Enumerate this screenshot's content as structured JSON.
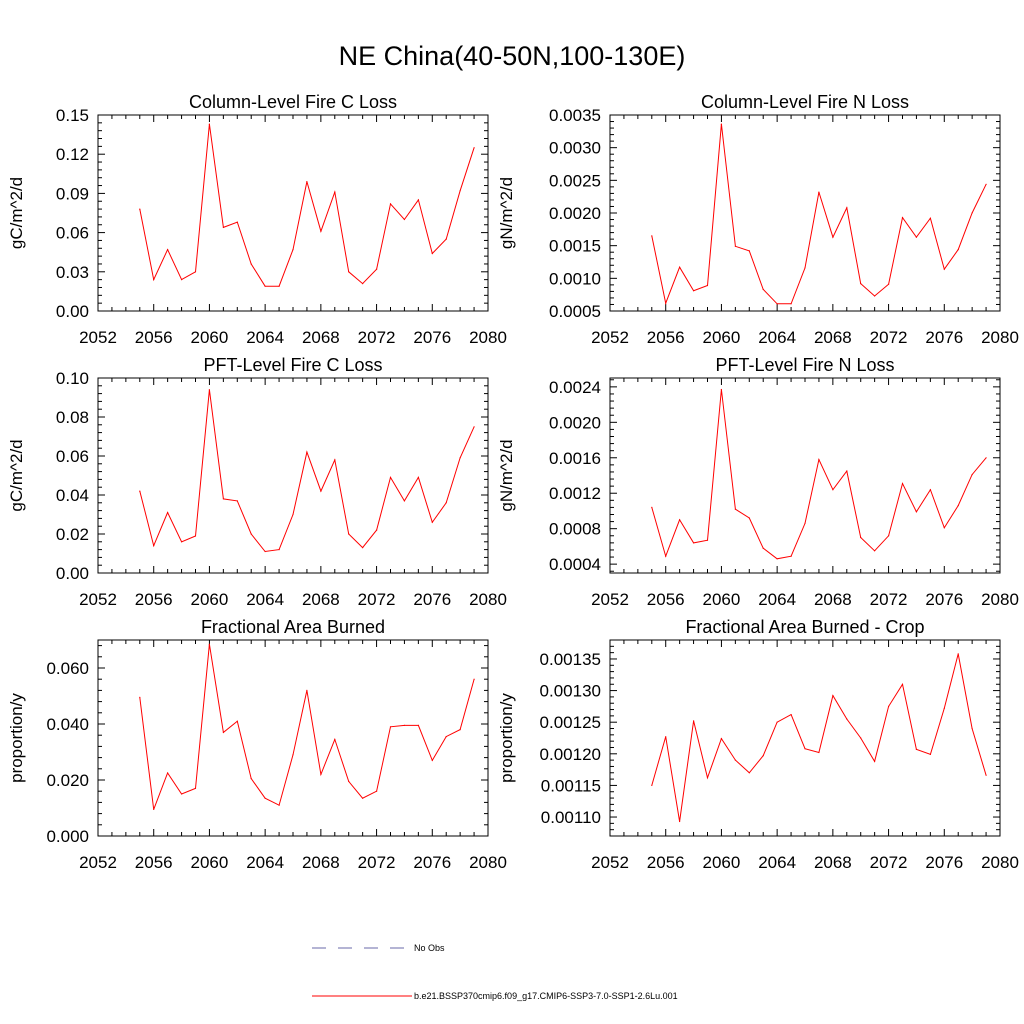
{
  "title": "NE China(40-50N,100-130E)",
  "colors": {
    "model": "#ff0000",
    "obs": "#6a6aa8",
    "axis": "#000000"
  },
  "chart_data": [
    {
      "type": "line",
      "title": "Column-Level Fire C Loss",
      "ylabel": "gC/m^2/d",
      "xlim": [
        2052,
        2080
      ],
      "xticks": [
        "2052",
        "2056",
        "2060",
        "2064",
        "2068",
        "2072",
        "2076",
        "2080"
      ],
      "ylim": [
        0.0,
        0.15
      ],
      "yticks": [
        "0.00",
        "0.03",
        "0.06",
        "0.09",
        "0.12",
        "0.15"
      ],
      "x": [
        2055,
        2056,
        2057,
        2058,
        2059,
        2060,
        2061,
        2062,
        2063,
        2064,
        2065,
        2066,
        2067,
        2068,
        2069,
        2070,
        2071,
        2072,
        2073,
        2074,
        2075,
        2076,
        2077,
        2078,
        2079
      ],
      "values": [
        0.078,
        0.024,
        0.047,
        0.024,
        0.03,
        0.143,
        0.064,
        0.068,
        0.036,
        0.019,
        0.019,
        0.047,
        0.099,
        0.061,
        0.091,
        0.03,
        0.021,
        0.032,
        0.082,
        0.07,
        0.085,
        0.044,
        0.055,
        0.092,
        0.125
      ]
    },
    {
      "type": "line",
      "title": "Column-Level Fire N Loss",
      "ylabel": "gN/m^2/d",
      "xlim": [
        2052,
        2080
      ],
      "xticks": [
        "2052",
        "2056",
        "2060",
        "2064",
        "2068",
        "2072",
        "2076",
        "2080"
      ],
      "ylim": [
        0.0005,
        0.0035
      ],
      "yticks": [
        "0.0005",
        "0.0010",
        "0.0015",
        "0.0020",
        "0.0025",
        "0.0030",
        "0.0035"
      ],
      "x": [
        2055,
        2056,
        2057,
        2058,
        2059,
        2060,
        2061,
        2062,
        2063,
        2064,
        2065,
        2066,
        2067,
        2068,
        2069,
        2070,
        2071,
        2072,
        2073,
        2074,
        2075,
        2076,
        2077,
        2078,
        2079
      ],
      "values": [
        0.00165,
        0.00062,
        0.00117,
        0.00081,
        0.00089,
        0.00336,
        0.00149,
        0.00142,
        0.00083,
        0.00061,
        0.00061,
        0.00116,
        0.00232,
        0.00163,
        0.00208,
        0.00092,
        0.00073,
        0.00091,
        0.00193,
        0.00163,
        0.00192,
        0.00114,
        0.00144,
        0.002,
        0.00244
      ]
    },
    {
      "type": "line",
      "title": "PFT-Level Fire C Loss",
      "ylabel": "gC/m^2/d",
      "xlim": [
        2052,
        2080
      ],
      "xticks": [
        "2052",
        "2056",
        "2060",
        "2064",
        "2068",
        "2072",
        "2076",
        "2080"
      ],
      "ylim": [
        0.0,
        0.1
      ],
      "yticks": [
        "0.00",
        "0.02",
        "0.04",
        "0.06",
        "0.08",
        "0.10"
      ],
      "x": [
        2055,
        2056,
        2057,
        2058,
        2059,
        2060,
        2061,
        2062,
        2063,
        2064,
        2065,
        2066,
        2067,
        2068,
        2069,
        2070,
        2071,
        2072,
        2073,
        2074,
        2075,
        2076,
        2077,
        2078,
        2079
      ],
      "values": [
        0.042,
        0.014,
        0.031,
        0.016,
        0.019,
        0.094,
        0.038,
        0.037,
        0.02,
        0.011,
        0.012,
        0.03,
        0.062,
        0.042,
        0.058,
        0.02,
        0.013,
        0.022,
        0.049,
        0.037,
        0.049,
        0.026,
        0.036,
        0.059,
        0.075
      ]
    },
    {
      "type": "line",
      "title": "PFT-Level Fire N Loss",
      "ylabel": "gN/m^2/d",
      "xlim": [
        2052,
        2080
      ],
      "xticks": [
        "2052",
        "2056",
        "2060",
        "2064",
        "2068",
        "2072",
        "2076",
        "2080"
      ],
      "ylim": [
        0.0003,
        0.0025
      ],
      "yticks": [
        "0.0004",
        "0.0008",
        "0.0012",
        "0.0016",
        "0.0020",
        "0.0024"
      ],
      "x": [
        2055,
        2056,
        2057,
        2058,
        2059,
        2060,
        2061,
        2062,
        2063,
        2064,
        2065,
        2066,
        2067,
        2068,
        2069,
        2070,
        2071,
        2072,
        2073,
        2074,
        2075,
        2076,
        2077,
        2078,
        2079
      ],
      "values": [
        0.00104,
        0.00049,
        0.0009,
        0.00064,
        0.00067,
        0.00237,
        0.00102,
        0.00092,
        0.00058,
        0.00046,
        0.00049,
        0.00086,
        0.00158,
        0.00124,
        0.00145,
        0.0007,
        0.00055,
        0.00072,
        0.00131,
        0.00099,
        0.00124,
        0.00081,
        0.00106,
        0.00141,
        0.0016
      ]
    },
    {
      "type": "line",
      "title": "Fractional Area Burned",
      "ylabel": "proportion/y",
      "xlim": [
        2052,
        2080
      ],
      "xticks": [
        "2052",
        "2056",
        "2060",
        "2064",
        "2068",
        "2072",
        "2076",
        "2080"
      ],
      "ylim": [
        0.0,
        0.07
      ],
      "yticks": [
        "0.000",
        "0.020",
        "0.040",
        "0.060"
      ],
      "x": [
        2055,
        2056,
        2057,
        2058,
        2059,
        2060,
        2061,
        2062,
        2063,
        2064,
        2065,
        2066,
        2067,
        2068,
        2069,
        2070,
        2071,
        2072,
        2073,
        2074,
        2075,
        2076,
        2077,
        2078,
        2079
      ],
      "values": [
        0.0495,
        0.0095,
        0.0225,
        0.015,
        0.017,
        0.0685,
        0.037,
        0.041,
        0.0205,
        0.0135,
        0.011,
        0.029,
        0.052,
        0.022,
        0.0345,
        0.0195,
        0.0135,
        0.016,
        0.039,
        0.0395,
        0.0395,
        0.027,
        0.0355,
        0.038,
        0.056
      ]
    },
    {
      "type": "line",
      "title": "Fractional Area Burned - Crop",
      "ylabel": "proportion/y",
      "xlim": [
        2052,
        2080
      ],
      "xticks": [
        "2052",
        "2056",
        "2060",
        "2064",
        "2068",
        "2072",
        "2076",
        "2080"
      ],
      "ylim": [
        0.00107,
        0.00138
      ],
      "yticks": [
        "0.00110",
        "0.00115",
        "0.00120",
        "0.00125",
        "0.00130",
        "0.00135"
      ],
      "x": [
        2055,
        2056,
        2057,
        2058,
        2059,
        2060,
        2061,
        2062,
        2063,
        2064,
        2065,
        2066,
        2067,
        2068,
        2069,
        2070,
        2071,
        2072,
        2073,
        2074,
        2075,
        2076,
        2077,
        2078,
        2079
      ],
      "values": [
        0.00115,
        0.001227,
        0.001093,
        0.001252,
        0.001162,
        0.001224,
        0.00119,
        0.00117,
        0.001197,
        0.00125,
        0.001262,
        0.001208,
        0.001202,
        0.001292,
        0.001255,
        0.001225,
        0.001188,
        0.001275,
        0.00131,
        0.001207,
        0.001199,
        0.001272,
        0.001358,
        0.00124,
        0.001166
      ]
    }
  ],
  "legend": [
    {
      "label": "No Obs",
      "style": "dashed"
    },
    {
      "label": "b.e21.BSSP370cmip6.f09_g17.CMIP6-SSP3-7.0-SSP1-2.6Lu.001",
      "style": "solid"
    }
  ]
}
